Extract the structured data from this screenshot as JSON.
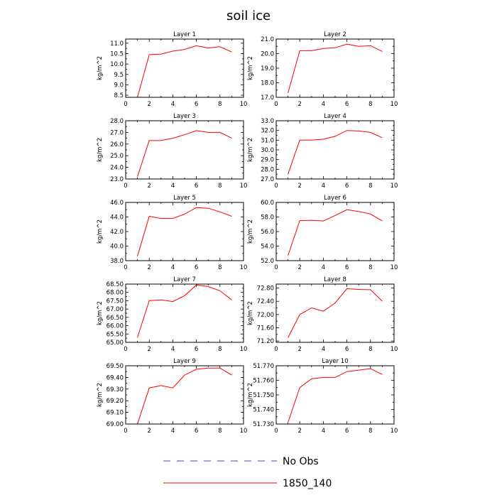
{
  "title": "soil ice",
  "colors": {
    "series": "#ff0000",
    "no_obs": "#4a4aa8",
    "axis": "#000000"
  },
  "legend": {
    "items": [
      {
        "label": "No Obs",
        "style": "dashed",
        "color": "#4a4aa8"
      },
      {
        "label": "1850_140",
        "style": "solid",
        "color": "#ff0000"
      }
    ]
  },
  "chart_data": [
    {
      "type": "line",
      "title": "Layer 1",
      "xlabel": "",
      "ylabel": "kg/m^2",
      "xlim": [
        0,
        10
      ],
      "xticks": [
        0,
        2,
        4,
        6,
        8,
        10
      ],
      "ylim": [
        8.4,
        11.2
      ],
      "yticks": [
        8.5,
        9.0,
        9.5,
        10.0,
        10.5,
        11.0
      ],
      "ydecimals": 1,
      "series": [
        {
          "x": [
            1,
            2,
            3,
            4,
            5,
            6,
            7,
            8,
            9
          ],
          "y": [
            8.4,
            10.45,
            10.48,
            10.62,
            10.7,
            10.88,
            10.77,
            10.83,
            10.58
          ]
        }
      ]
    },
    {
      "type": "line",
      "title": "Layer 2",
      "xlabel": "",
      "ylabel": "kg/m^2",
      "xlim": [
        0,
        10
      ],
      "xticks": [
        0,
        2,
        4,
        6,
        8,
        10
      ],
      "ylim": [
        17.0,
        21.0
      ],
      "yticks": [
        17.0,
        18.0,
        19.0,
        20.0,
        21.0
      ],
      "ydecimals": 1,
      "series": [
        {
          "x": [
            1,
            2,
            3,
            4,
            5,
            6,
            7,
            8,
            9
          ],
          "y": [
            17.3,
            20.2,
            20.2,
            20.35,
            20.4,
            20.65,
            20.5,
            20.55,
            20.15
          ]
        }
      ]
    },
    {
      "type": "line",
      "title": "Layer 3",
      "xlabel": "",
      "ylabel": "kg/m^2",
      "xlim": [
        0,
        10
      ],
      "xticks": [
        0,
        2,
        4,
        6,
        8,
        10
      ],
      "ylim": [
        23.0,
        28.0
      ],
      "yticks": [
        23.0,
        24.0,
        25.0,
        26.0,
        27.0,
        28.0
      ],
      "ydecimals": 1,
      "series": [
        {
          "x": [
            1,
            2,
            3,
            4,
            5,
            6,
            7,
            8,
            9
          ],
          "y": [
            23.2,
            26.3,
            26.3,
            26.5,
            26.8,
            27.15,
            27.0,
            27.0,
            26.5
          ]
        }
      ]
    },
    {
      "type": "line",
      "title": "Layer 4",
      "xlabel": "",
      "ylabel": "kg/m^2",
      "xlim": [
        0,
        10
      ],
      "xticks": [
        0,
        2,
        4,
        6,
        8,
        10
      ],
      "ylim": [
        27.0,
        33.0
      ],
      "yticks": [
        27.0,
        28.0,
        29.0,
        30.0,
        31.0,
        32.0,
        33.0
      ],
      "ydecimals": 1,
      "series": [
        {
          "x": [
            1,
            2,
            3,
            4,
            5,
            6,
            7,
            8,
            9
          ],
          "y": [
            27.5,
            31.0,
            31.0,
            31.1,
            31.4,
            32.0,
            31.95,
            31.8,
            31.25
          ]
        }
      ]
    },
    {
      "type": "line",
      "title": "Layer 5",
      "xlabel": "",
      "ylabel": "kg/m^2",
      "xlim": [
        0,
        10
      ],
      "xticks": [
        0,
        2,
        4,
        6,
        8,
        10
      ],
      "ylim": [
        38.0,
        46.0
      ],
      "yticks": [
        38.0,
        40.0,
        42.0,
        44.0,
        46.0
      ],
      "ydecimals": 1,
      "series": [
        {
          "x": [
            1,
            2,
            3,
            4,
            5,
            6,
            7,
            8,
            9
          ],
          "y": [
            38.6,
            44.1,
            43.8,
            43.8,
            44.4,
            45.3,
            45.2,
            44.7,
            44.1
          ]
        }
      ]
    },
    {
      "type": "line",
      "title": "Layer 6",
      "xlabel": "",
      "ylabel": "kg/m^2",
      "xlim": [
        0,
        10
      ],
      "xticks": [
        0,
        2,
        4,
        6,
        8,
        10
      ],
      "ylim": [
        52.0,
        60.0
      ],
      "yticks": [
        52.0,
        54.0,
        56.0,
        58.0,
        60.0
      ],
      "ydecimals": 1,
      "series": [
        {
          "x": [
            1,
            2,
            3,
            4,
            5,
            6,
            7,
            8,
            9
          ],
          "y": [
            52.7,
            57.5,
            57.55,
            57.45,
            58.2,
            59.0,
            58.75,
            58.4,
            57.45
          ]
        }
      ]
    },
    {
      "type": "line",
      "title": "Layer 7",
      "xlabel": "",
      "ylabel": "kg/m^2",
      "xlim": [
        0,
        10
      ],
      "xticks": [
        0,
        2,
        4,
        6,
        8,
        10
      ],
      "ylim": [
        65.0,
        68.5
      ],
      "yticks": [
        65.0,
        65.5,
        66.0,
        66.5,
        67.0,
        67.5,
        68.0,
        68.5
      ],
      "ydecimals": 2,
      "series": [
        {
          "x": [
            1,
            2,
            3,
            4,
            5,
            6,
            7,
            8,
            9
          ],
          "y": [
            65.3,
            67.5,
            67.55,
            67.45,
            67.8,
            68.45,
            68.35,
            68.1,
            67.55
          ]
        }
      ]
    },
    {
      "type": "line",
      "title": "Layer 8",
      "xlabel": "",
      "ylabel": "kg/m^2",
      "xlim": [
        0,
        10
      ],
      "xticks": [
        0,
        2,
        4,
        6,
        8,
        10
      ],
      "ylim": [
        71.16,
        72.92
      ],
      "yticks": [
        71.2,
        71.6,
        72.0,
        72.4,
        72.8
      ],
      "ydecimals": 2,
      "series": [
        {
          "x": [
            1,
            2,
            3,
            4,
            5,
            6,
            7,
            8,
            9
          ],
          "y": [
            71.3,
            72.0,
            72.2,
            72.1,
            72.35,
            72.78,
            72.76,
            72.75,
            72.4
          ]
        }
      ]
    },
    {
      "type": "line",
      "title": "Layer 9",
      "xlabel": "",
      "ylabel": "kg/m^2",
      "xlim": [
        0,
        10
      ],
      "xticks": [
        0,
        2,
        4,
        6,
        8,
        10
      ],
      "ylim": [
        69.0,
        69.5
      ],
      "yticks": [
        69.0,
        69.1,
        69.2,
        69.3,
        69.4,
        69.5
      ],
      "ydecimals": 2,
      "series": [
        {
          "x": [
            1,
            2,
            3,
            4,
            5,
            6,
            7,
            8,
            9
          ],
          "y": [
            69.0,
            69.31,
            69.33,
            69.31,
            69.42,
            69.47,
            69.48,
            69.48,
            69.42
          ]
        }
      ]
    },
    {
      "type": "line",
      "title": "Layer 10",
      "xlabel": "",
      "ylabel": "kg/m^2",
      "xlim": [
        0,
        10
      ],
      "xticks": [
        0,
        2,
        4,
        6,
        8,
        10
      ],
      "ylim": [
        51.73,
        51.77
      ],
      "yticks": [
        51.73,
        51.74,
        51.75,
        51.76,
        51.77
      ],
      "ydecimals": 3,
      "series": [
        {
          "x": [
            1,
            2,
            3,
            4,
            5,
            6,
            7,
            8,
            9
          ],
          "y": [
            51.731,
            51.755,
            51.761,
            51.762,
            51.762,
            51.766,
            51.767,
            51.768,
            51.764
          ]
        }
      ]
    }
  ]
}
